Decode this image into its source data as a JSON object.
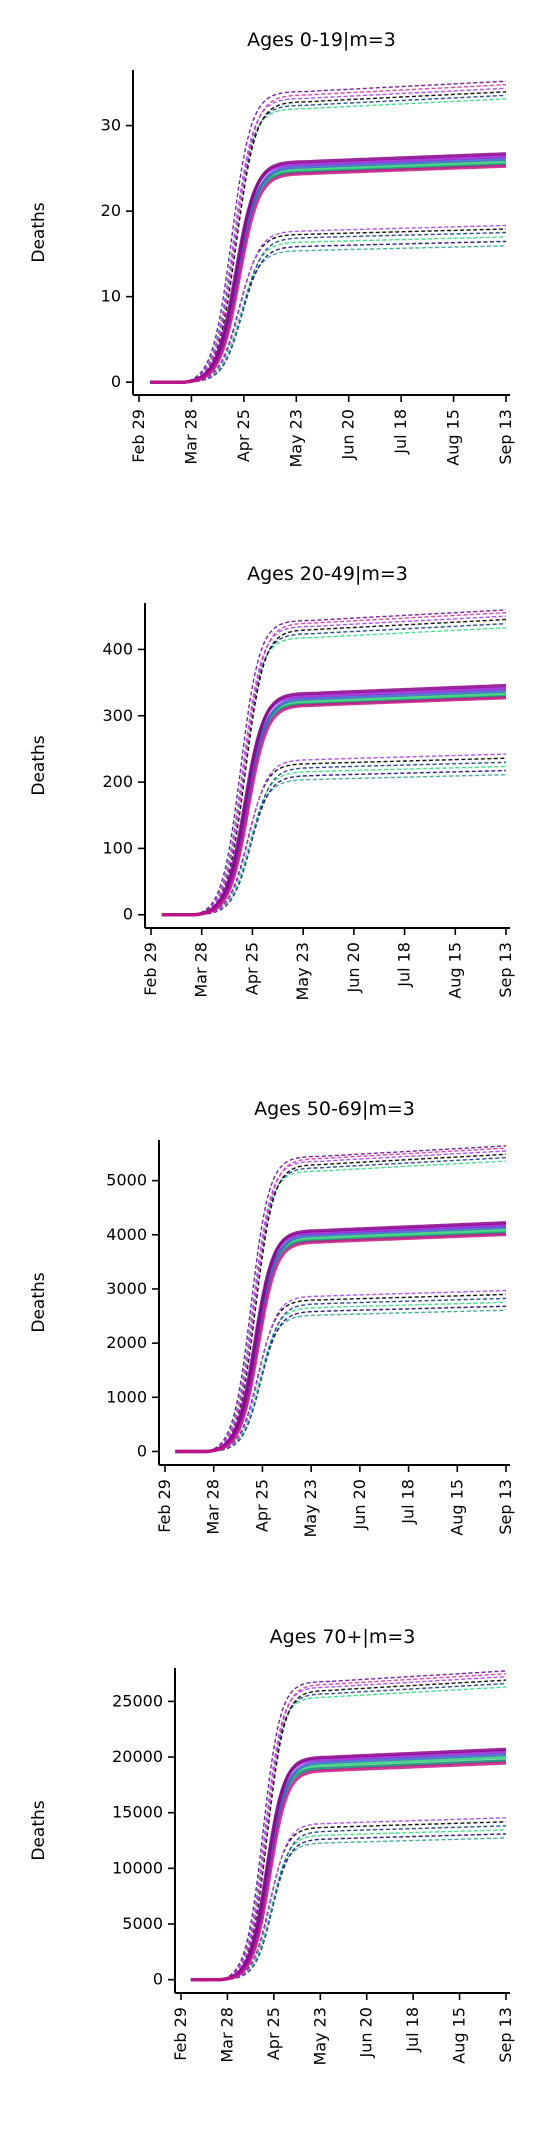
{
  "dates": [
    "Feb 29",
    "Mar 28",
    "Apr 25",
    "May 23",
    "Jun 20",
    "Jul 18",
    "Aug 15",
    "Sep 13"
  ],
  "date_offsets": [
    0,
    28,
    56,
    84,
    112,
    140,
    168,
    196
  ],
  "ylabel": "Deaths",
  "central_colors": [
    "#0a8a6e",
    "#2ecc71",
    "#3a5fcd",
    "#9b1fd6",
    "#8b008b",
    "#c71585"
  ],
  "band_colors": [
    "#39e58c",
    "#2a4d8f",
    "#111111",
    "#b34dff",
    "#e040b0",
    "#7a1fa2",
    "#3fb0a0",
    "#2b1a80"
  ],
  "chart_data": [
    {
      "type": "line",
      "title": "Ages 0-19|m=3",
      "xlabel": "",
      "ylabel": "Deaths",
      "ylim": [
        -1.5,
        36.5
      ],
      "yticks": [
        0,
        10,
        20,
        30
      ],
      "ytick_labels": [
        "0",
        "10",
        "20",
        "30"
      ],
      "x_range": [
        "Feb 29",
        "Sep 13"
      ],
      "series": [
        {
          "style": "central",
          "plateau": 24.6,
          "t50": 52
        },
        {
          "style": "central",
          "plateau": 24.9,
          "t50": 52.5
        },
        {
          "style": "central",
          "plateau": 25.2,
          "t50": 53
        },
        {
          "style": "central",
          "plateau": 25.5,
          "t50": 51.5
        },
        {
          "style": "central",
          "plateau": 25.8,
          "t50": 52
        },
        {
          "style": "central",
          "plateau": 24.4,
          "t50": 53.5
        },
        {
          "style": "upper",
          "plateau": 32.0,
          "t50": 50
        },
        {
          "style": "upper",
          "plateau": 32.4,
          "t50": 51
        },
        {
          "style": "upper",
          "plateau": 32.8,
          "t50": 52
        },
        {
          "style": "upper",
          "plateau": 33.2,
          "t50": 50.5
        },
        {
          "style": "upper",
          "plateau": 33.6,
          "t50": 51.5
        },
        {
          "style": "upper",
          "plateau": 34.0,
          "t50": 49.5
        },
        {
          "style": "lower",
          "plateau": 15.4,
          "t50": 54
        },
        {
          "style": "lower",
          "plateau": 15.9,
          "t50": 55
        },
        {
          "style": "lower",
          "plateau": 16.4,
          "t50": 54.5
        },
        {
          "style": "lower",
          "plateau": 16.9,
          "t50": 55.5
        },
        {
          "style": "lower",
          "plateau": 17.3,
          "t50": 53.5
        },
        {
          "style": "lower",
          "plateau": 17.7,
          "t50": 54
        }
      ]
    },
    {
      "type": "line",
      "title": "Ages 20-49|m=3",
      "xlabel": "",
      "ylabel": "Deaths",
      "ylim": [
        -20,
        470
      ],
      "yticks": [
        0,
        100,
        200,
        300,
        400
      ],
      "ytick_labels": [
        "0",
        "100",
        "200",
        "300",
        "400"
      ],
      "x_range": [
        "Feb 29",
        "Sep 13"
      ],
      "series": [
        {
          "style": "central",
          "plateau": 318,
          "t50": 52
        },
        {
          "style": "central",
          "plateau": 322,
          "t50": 52.5
        },
        {
          "style": "central",
          "plateau": 326,
          "t50": 53
        },
        {
          "style": "central",
          "plateau": 330,
          "t50": 51.5
        },
        {
          "style": "central",
          "plateau": 334,
          "t50": 52
        },
        {
          "style": "central",
          "plateau": 316,
          "t50": 53.5
        },
        {
          "style": "upper",
          "plateau": 418,
          "t50": 50
        },
        {
          "style": "upper",
          "plateau": 424,
          "t50": 51
        },
        {
          "style": "upper",
          "plateau": 430,
          "t50": 52
        },
        {
          "style": "upper",
          "plateau": 435,
          "t50": 50.5
        },
        {
          "style": "upper",
          "plateau": 440,
          "t50": 51.5
        },
        {
          "style": "upper",
          "plateau": 444,
          "t50": 49.5
        },
        {
          "style": "lower",
          "plateau": 204,
          "t50": 54
        },
        {
          "style": "lower",
          "plateau": 210,
          "t50": 55
        },
        {
          "style": "lower",
          "plateau": 216,
          "t50": 54.5
        },
        {
          "style": "lower",
          "plateau": 222,
          "t50": 55.5
        },
        {
          "style": "lower",
          "plateau": 228,
          "t50": 53.5
        },
        {
          "style": "lower",
          "plateau": 234,
          "t50": 54
        }
      ]
    },
    {
      "type": "line",
      "title": "Ages 50-69|m=3",
      "xlabel": "",
      "ylabel": "Deaths",
      "ylim": [
        -250,
        5750
      ],
      "yticks": [
        0,
        1000,
        2000,
        3000,
        4000,
        5000
      ],
      "ytick_labels": [
        "0",
        "1000",
        "2000",
        "3000",
        "4000",
        "5000"
      ],
      "x_range": [
        "Feb 29",
        "Sep 13"
      ],
      "series": [
        {
          "style": "central",
          "plateau": 3900,
          "t50": 52
        },
        {
          "style": "central",
          "plateau": 3950,
          "t50": 52.5
        },
        {
          "style": "central",
          "plateau": 4000,
          "t50": 53
        },
        {
          "style": "central",
          "plateau": 4040,
          "t50": 51.5
        },
        {
          "style": "central",
          "plateau": 4080,
          "t50": 52
        },
        {
          "style": "central",
          "plateau": 3870,
          "t50": 53.5
        },
        {
          "style": "upper",
          "plateau": 5180,
          "t50": 50
        },
        {
          "style": "upper",
          "plateau": 5240,
          "t50": 51
        },
        {
          "style": "upper",
          "plateau": 5300,
          "t50": 52
        },
        {
          "style": "upper",
          "plateau": 5360,
          "t50": 50.5
        },
        {
          "style": "upper",
          "plateau": 5410,
          "t50": 51.5
        },
        {
          "style": "upper",
          "plateau": 5450,
          "t50": 49.5
        },
        {
          "style": "lower",
          "plateau": 2520,
          "t50": 54
        },
        {
          "style": "lower",
          "plateau": 2590,
          "t50": 55
        },
        {
          "style": "lower",
          "plateau": 2660,
          "t50": 54.5
        },
        {
          "style": "lower",
          "plateau": 2730,
          "t50": 55.5
        },
        {
          "style": "lower",
          "plateau": 2800,
          "t50": 53.5
        },
        {
          "style": "lower",
          "plateau": 2870,
          "t50": 54
        }
      ]
    },
    {
      "type": "line",
      "title": "Ages 70+|m=3",
      "xlabel": "",
      "ylabel": "Deaths",
      "ylim": [
        -1200,
        28000
      ],
      "yticks": [
        0,
        5000,
        10000,
        15000,
        20000,
        25000
      ],
      "ytick_labels": [
        "0",
        "5000",
        "10000",
        "15000",
        "20000",
        "25000"
      ],
      "x_range": [
        "Feb 29",
        "Sep 13"
      ],
      "series": [
        {
          "style": "central",
          "plateau": 19000,
          "t50": 52
        },
        {
          "style": "central",
          "plateau": 19300,
          "t50": 52.5
        },
        {
          "style": "central",
          "plateau": 19550,
          "t50": 53
        },
        {
          "style": "central",
          "plateau": 19800,
          "t50": 51.5
        },
        {
          "style": "central",
          "plateau": 20000,
          "t50": 52
        },
        {
          "style": "central",
          "plateau": 18800,
          "t50": 53.5
        },
        {
          "style": "upper",
          "plateau": 25400,
          "t50": 50
        },
        {
          "style": "upper",
          "plateau": 25700,
          "t50": 51
        },
        {
          "style": "upper",
          "plateau": 26000,
          "t50": 52
        },
        {
          "style": "upper",
          "plateau": 26300,
          "t50": 50.5
        },
        {
          "style": "upper",
          "plateau": 26550,
          "t50": 51.5
        },
        {
          "style": "upper",
          "plateau": 26800,
          "t50": 49.5
        },
        {
          "style": "lower",
          "plateau": 12300,
          "t50": 54
        },
        {
          "style": "lower",
          "plateau": 12650,
          "t50": 55
        },
        {
          "style": "lower",
          "plateau": 13000,
          "t50": 54.5
        },
        {
          "style": "lower",
          "plateau": 13350,
          "t50": 55.5
        },
        {
          "style": "lower",
          "plateau": 13700,
          "t50": 53.5
        },
        {
          "style": "lower",
          "plateau": 14050,
          "t50": 54
        }
      ]
    }
  ]
}
